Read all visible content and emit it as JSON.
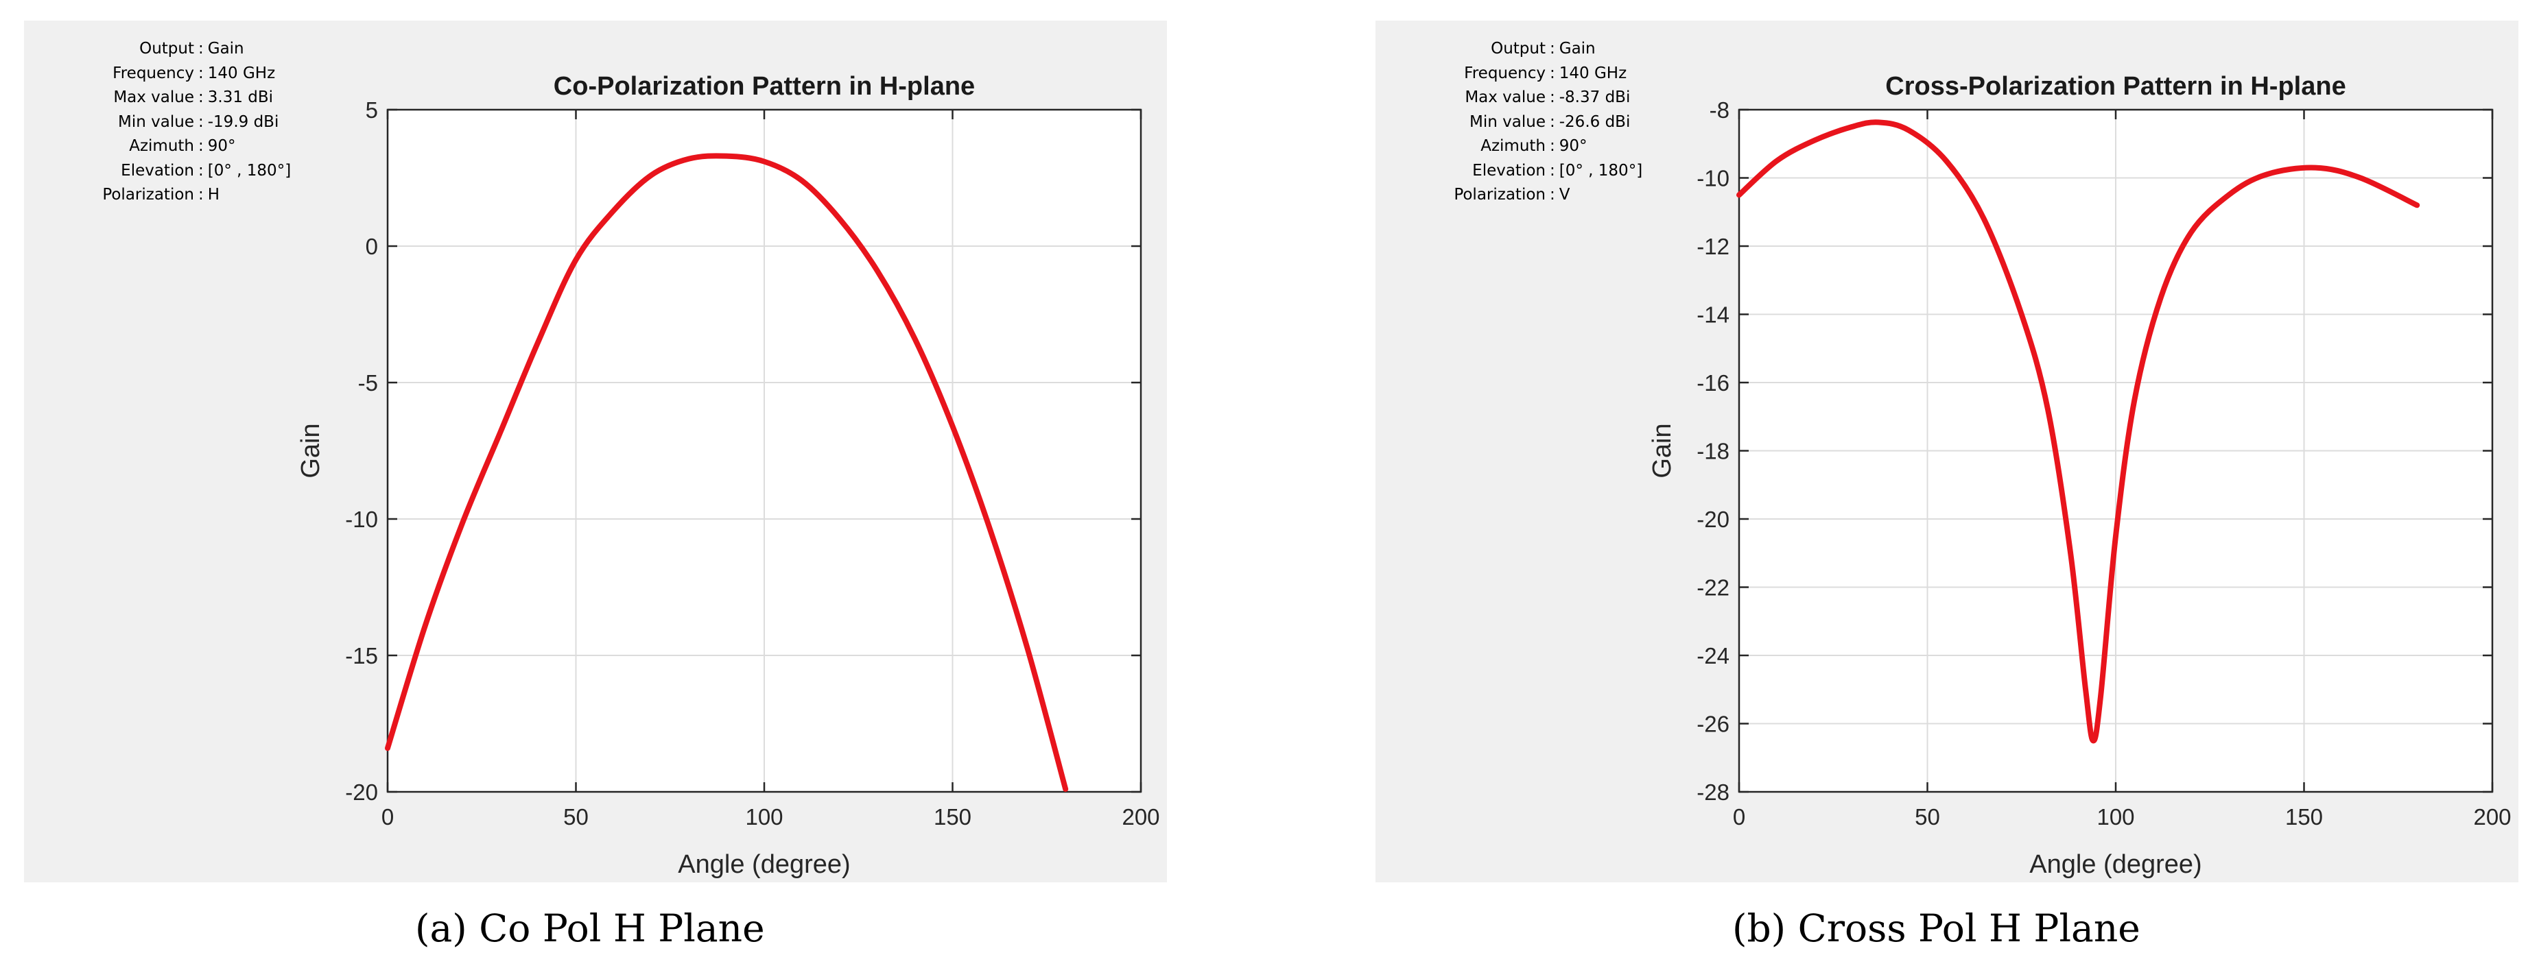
{
  "chart_data": [
    {
      "type": "line",
      "title": "Co-Polarization Pattern in H-plane",
      "xlabel": "Angle (degree)",
      "ylabel": "Gain",
      "xlim": [
        0,
        200
      ],
      "ylim": [
        -20,
        5
      ],
      "xticks": [
        0,
        50,
        100,
        150,
        200
      ],
      "yticks": [
        5,
        0,
        -5,
        -10,
        -15,
        -20
      ],
      "grid": true,
      "line_color": "#e8141c",
      "info": [
        {
          "key": "Output",
          "value": "Gain"
        },
        {
          "key": "Frequency",
          "value": "140 GHz"
        },
        {
          "key": "Max value",
          "value": "3.31 dBi"
        },
        {
          "key": "Min value",
          "value": "-19.9 dBi"
        },
        {
          "key": "Azimuth",
          "value": "90°"
        },
        {
          "key": "Elevation",
          "value": "[0° , 180°]"
        },
        {
          "key": "Polarization",
          "value": "H"
        }
      ],
      "caption": "(a)  Co Pol H Plane",
      "series": [
        {
          "x": [
            0,
            10,
            20,
            30,
            40,
            50,
            60,
            70,
            80,
            90,
            100,
            110,
            120,
            130,
            140,
            150,
            160,
            170,
            180
          ],
          "y": [
            -18.4,
            -13.9,
            -10.1,
            -6.8,
            -3.5,
            -0.5,
            1.3,
            2.6,
            3.2,
            3.3,
            3.1,
            2.4,
            1.0,
            -0.9,
            -3.4,
            -6.6,
            -10.4,
            -14.8,
            -19.9
          ]
        }
      ]
    },
    {
      "type": "line",
      "title": "Cross-Polarization Pattern in H-plane",
      "xlabel": "Angle (degree)",
      "ylabel": "Gain",
      "xlim": [
        0,
        200
      ],
      "ylim": [
        -28,
        -8
      ],
      "xticks": [
        0,
        50,
        100,
        150,
        200
      ],
      "yticks": [
        -8,
        -10,
        -12,
        -14,
        -16,
        -18,
        -20,
        -22,
        -24,
        -26,
        -28
      ],
      "grid": true,
      "line_color": "#e8141c",
      "info": [
        {
          "key": "Output",
          "value": "Gain"
        },
        {
          "key": "Frequency",
          "value": "140 GHz"
        },
        {
          "key": "Max value",
          "value": "-8.37 dBi"
        },
        {
          "key": "Min value",
          "value": "-26.6 dBi"
        },
        {
          "key": "Azimuth",
          "value": "90°"
        },
        {
          "key": "Elevation",
          "value": "[0° , 180°]"
        },
        {
          "key": "Polarization",
          "value": "V"
        }
      ],
      "caption": "(b)  Cross Pol H Plane",
      "series": [
        {
          "x": [
            0,
            10,
            20,
            30,
            37,
            45,
            55,
            65,
            75,
            82,
            88,
            92,
            94,
            96,
            100,
            105,
            112,
            120,
            130,
            140,
            153,
            165,
            180
          ],
          "y": [
            -10.5,
            -9.5,
            -8.9,
            -8.5,
            -8.37,
            -8.6,
            -9.5,
            -11.2,
            -14.0,
            -16.8,
            -21.0,
            -25.0,
            -26.5,
            -25.2,
            -20.5,
            -16.5,
            -13.5,
            -11.6,
            -10.5,
            -9.9,
            -9.7,
            -10.0,
            -10.8
          ]
        }
      ]
    }
  ]
}
